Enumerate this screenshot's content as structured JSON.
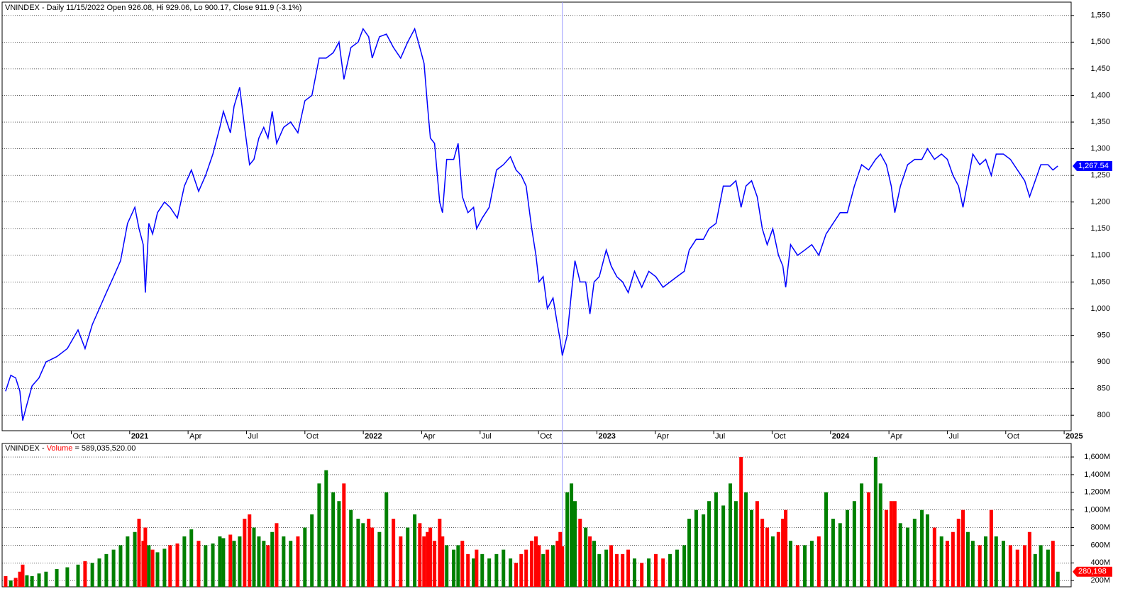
{
  "chart_data": {
    "type": "line",
    "title": "VNINDEX - Daily 11/15/2022 Open 926.08, Hi 929.06, Lo 900.17, Close 911.9 (-3.1%)",
    "color": "#0000ff",
    "x": [
      2020.469,
      2020.491,
      2020.512,
      2020.53,
      2020.542,
      2020.56,
      2020.582,
      2020.612,
      2020.642,
      2020.688,
      2020.733,
      2020.779,
      2020.809,
      2020.84,
      2020.87,
      2020.9,
      2020.931,
      2020.961,
      2020.991,
      2021.022,
      2021.04,
      2021.058,
      2021.067,
      2021.082,
      2021.098,
      2021.119,
      2021.149,
      2021.173,
      2021.204,
      2021.234,
      2021.264,
      2021.295,
      2021.325,
      2021.356,
      2021.386,
      2021.401,
      2021.431,
      2021.447,
      2021.471,
      2021.492,
      2021.513,
      2021.532,
      2021.553,
      2021.574,
      2021.592,
      2021.61,
      2021.629,
      2021.659,
      2021.689,
      2021.72,
      2021.75,
      2021.78,
      2021.811,
      2021.841,
      2021.871,
      2021.896,
      2021.917,
      2021.947,
      2021.978,
      2021.999,
      2022.023,
      2022.038,
      2022.069,
      2022.099,
      2022.129,
      2022.16,
      2022.19,
      2022.22,
      2022.242,
      2022.26,
      2022.275,
      2022.287,
      2022.305,
      2022.327,
      2022.339,
      2022.357,
      2022.387,
      2022.406,
      2022.424,
      2022.448,
      2022.472,
      2022.485,
      2022.509,
      2022.539,
      2022.57,
      2022.6,
      2022.63,
      2022.654,
      2022.676,
      2022.697,
      2022.721,
      2022.739,
      2022.752,
      2022.77,
      2022.788,
      2022.812,
      2022.831,
      2022.843,
      2022.852,
      2022.873,
      2022.891,
      2022.906,
      2022.928,
      2022.952,
      2022.97,
      2022.988,
      2023.01,
      2023.04,
      2023.061,
      2023.085,
      2023.11,
      2023.134,
      2023.161,
      2023.192,
      2023.222,
      2023.252,
      2023.283,
      2023.313,
      2023.343,
      2023.374,
      2023.395,
      2023.425,
      2023.456,
      2023.48,
      2023.51,
      2023.541,
      2023.571,
      2023.595,
      2023.617,
      2023.638,
      2023.662,
      2023.686,
      2023.708,
      2023.729,
      2023.753,
      2023.777,
      2023.796,
      2023.808,
      2023.829,
      2023.859,
      2023.89,
      2023.92,
      2023.95,
      2023.981,
      2024.011,
      2024.041,
      2024.072,
      2024.102,
      2024.133,
      2024.163,
      2024.193,
      2024.214,
      2024.239,
      2024.26,
      2024.275,
      2024.299,
      2024.33,
      2024.36,
      2024.391,
      2024.415,
      2024.445,
      2024.475,
      2024.5,
      2024.524,
      2024.548,
      2024.567,
      2024.588,
      2024.609,
      2024.639,
      2024.664,
      2024.688,
      2024.709,
      2024.74,
      2024.77,
      2024.8,
      2024.831,
      2024.852,
      2024.876,
      2024.9,
      2024.931,
      2024.952,
      2024.973
    ],
    "series": [
      {
        "values": [
          845,
          875,
          870,
          845,
          790,
          820,
          855,
          870,
          900,
          910,
          925,
          960,
          925,
          970,
          1000,
          1030,
          1060,
          1090,
          1160,
          1190,
          1150,
          1120,
          1030,
          1160,
          1140,
          1180,
          1200,
          1190,
          1170,
          1230,
          1260,
          1220,
          1250,
          1290,
          1340,
          1370,
          1330,
          1380,
          1415,
          1340,
          1270,
          1280,
          1320,
          1340,
          1320,
          1370,
          1310,
          1340,
          1350,
          1330,
          1390,
          1400,
          1470,
          1470,
          1480,
          1500,
          1430,
          1490,
          1500,
          1525,
          1510,
          1470,
          1510,
          1515,
          1490,
          1470,
          1500,
          1525,
          1490,
          1460,
          1380,
          1320,
          1310,
          1200,
          1180,
          1280,
          1280,
          1310,
          1210,
          1180,
          1190,
          1150,
          1170,
          1190,
          1260,
          1270,
          1285,
          1260,
          1250,
          1230,
          1150,
          1100,
          1050,
          1060,
          1000,
          1020,
          970,
          940,
          911.9,
          950,
          1030,
          1090,
          1050,
          1050,
          990,
          1050,
          1060,
          1110,
          1080,
          1060,
          1050,
          1030,
          1070,
          1040,
          1070,
          1060,
          1040,
          1050,
          1060,
          1070,
          1110,
          1130,
          1130,
          1150,
          1160,
          1230,
          1230,
          1240,
          1190,
          1230,
          1240,
          1210,
          1150,
          1120,
          1150,
          1100,
          1080,
          1040,
          1120,
          1100,
          1110,
          1120,
          1100,
          1140,
          1160,
          1180,
          1180,
          1230,
          1270,
          1260,
          1280,
          1290,
          1270,
          1230,
          1180,
          1230,
          1270,
          1280,
          1280,
          1300,
          1280,
          1290,
          1280,
          1250,
          1230,
          1190,
          1240,
          1290,
          1270,
          1280,
          1250,
          1290,
          1290,
          1280,
          1260,
          1240,
          1210,
          1240,
          1270,
          1270,
          1260,
          1267.54
        ]
      }
    ],
    "last_price_label": "1,267.54",
    "crosshair_x": 2022.852,
    "xlim": [
      2020.454,
      2025.03
    ],
    "ylim": [
      771,
      1575
    ],
    "xticks": [
      {
        "value": 2020.75,
        "label": "Oct"
      },
      {
        "value": 2021,
        "label": "2021"
      },
      {
        "value": 2021.25,
        "label": "Apr"
      },
      {
        "value": 2021.5,
        "label": "Jul"
      },
      {
        "value": 2021.75,
        "label": "Oct"
      },
      {
        "value": 2022,
        "label": "2022"
      },
      {
        "value": 2022.25,
        "label": "Apr"
      },
      {
        "value": 2022.5,
        "label": "Jul"
      },
      {
        "value": 2022.75,
        "label": "Oct"
      },
      {
        "value": 2023,
        "label": "2023"
      },
      {
        "value": 2023.25,
        "label": "Apr"
      },
      {
        "value": 2023.5,
        "label": "Jul"
      },
      {
        "value": 2023.75,
        "label": "Oct"
      },
      {
        "value": 2024,
        "label": "2024"
      },
      {
        "value": 2024.25,
        "label": "Apr"
      },
      {
        "value": 2024.5,
        "label": "Jul"
      },
      {
        "value": 2024.75,
        "label": "Oct"
      },
      {
        "value": 2025,
        "label": "2025"
      }
    ],
    "yticks": [
      800,
      850,
      900,
      950,
      {
        "value": 1000,
        "label": "1,000"
      },
      {
        "value": 1050,
        "label": "1,050"
      },
      {
        "value": 1100,
        "label": "1,100"
      },
      {
        "value": 1150,
        "label": "1,150"
      },
      {
        "value": 1200,
        "label": "1,200"
      },
      {
        "value": 1250,
        "label": "1,250"
      },
      {
        "value": 1300,
        "label": "1,300"
      },
      {
        "value": 1350,
        "label": "1,350"
      },
      {
        "value": 1400,
        "label": "1,400"
      },
      {
        "value": 1450,
        "label": "1,450"
      },
      {
        "value": 1500,
        "label": "1,500"
      },
      {
        "value": 1550,
        "label": "1,550"
      }
    ],
    "grid": true,
    "volume": {
      "title_prefix": "VNINDEX - ",
      "title_name": "Volume",
      "title_value": " = 589,035,520.00",
      "last_label": "280,198",
      "up_color": "#008000",
      "down_color": "#ff0000",
      "values": [
        250,
        200,
        230,
        300,
        380,
        260,
        250,
        280,
        300,
        330,
        350,
        380,
        420,
        400,
        450,
        500,
        550,
        600,
        700,
        750,
        900,
        650,
        800,
        600,
        550,
        520,
        560,
        600,
        620,
        700,
        780,
        650,
        600,
        620,
        700,
        680,
        720,
        650,
        700,
        900,
        950,
        800,
        700,
        650,
        600,
        750,
        850,
        700,
        650,
        700,
        800,
        950,
        1300,
        1450,
        1200,
        1100,
        1300,
        1000,
        900,
        850,
        900,
        800,
        750,
        1200,
        900,
        700,
        800,
        950,
        850,
        700,
        750,
        800,
        650,
        900,
        700,
        600,
        550,
        600,
        650,
        500,
        450,
        550,
        500,
        450,
        500,
        550,
        450,
        400,
        500,
        550,
        650,
        700,
        600,
        500,
        550,
        600,
        650,
        750,
        589,
        1200,
        1300,
        1100,
        900,
        800,
        700,
        650,
        500,
        550,
        600,
        500,
        500,
        550,
        450,
        400,
        450,
        500,
        450,
        500,
        550,
        600,
        900,
        1000,
        950,
        1100,
        1200,
        1050,
        1300,
        1100,
        1600,
        1200,
        1000,
        1100,
        900,
        800,
        700,
        750,
        900,
        1000,
        650,
        600,
        600,
        650,
        700,
        1200,
        900,
        850,
        1000,
        1100,
        1300,
        1200,
        1600,
        1300,
        1000,
        1100,
        1100,
        850,
        800,
        900,
        1000,
        950,
        800,
        700,
        650,
        750,
        900,
        1000,
        750,
        650,
        600,
        700,
        1000,
        700,
        650,
        600,
        550,
        600,
        750,
        500,
        600,
        550,
        650,
        300
      ],
      "ylim": [
        129,
        1753
      ],
      "yticks": [
        {
          "value": 200,
          "label": "200M"
        },
        {
          "value": 400,
          "label": "400M"
        },
        {
          "value": 600,
          "label": "600M"
        },
        {
          "value": 800,
          "label": "800M"
        },
        {
          "value": 1000,
          "label": "1,000M"
        },
        {
          "value": 1200,
          "label": "1,200M"
        },
        {
          "value": 1400,
          "label": "1,400M"
        },
        {
          "value": 1600,
          "label": "1,600M"
        }
      ]
    }
  }
}
